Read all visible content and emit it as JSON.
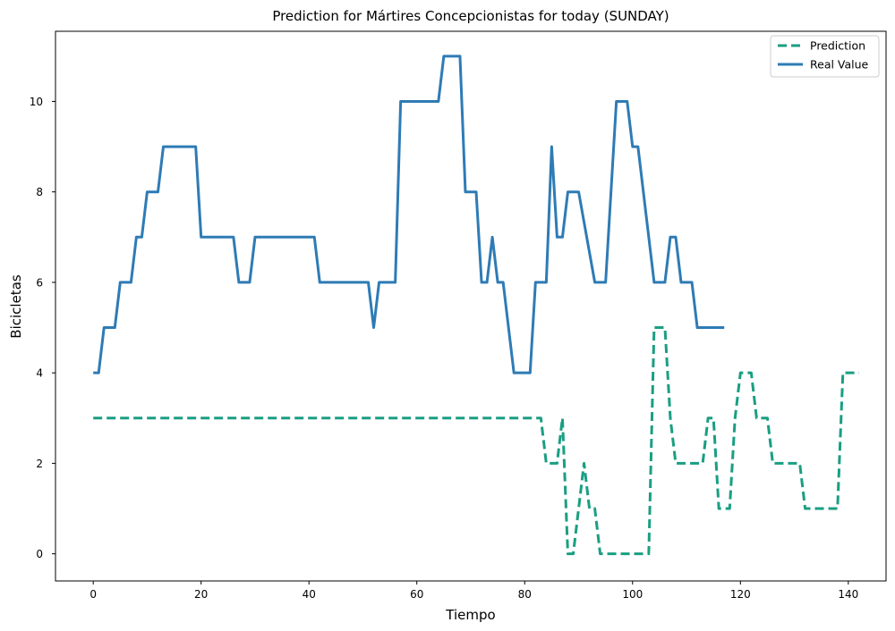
{
  "chart_data": {
    "type": "line",
    "title": "Prediction for Mártires Concepcionistas for today (SUNDAY)",
    "xlabel": "Tiempo",
    "ylabel": "Bicicletas",
    "xlim": [
      -7,
      147
    ],
    "ylim": [
      -0.6,
      11.55
    ],
    "xticks": [
      0,
      20,
      40,
      60,
      80,
      100,
      120,
      140
    ],
    "yticks": [
      0,
      2,
      4,
      6,
      8,
      10
    ],
    "grid": false,
    "legend_position": "top-right",
    "series": [
      {
        "name": "Prediction",
        "color": "#1a9e82",
        "style": "dashed",
        "points": [
          [
            0,
            3
          ],
          [
            83,
            3
          ],
          [
            84,
            2
          ],
          [
            86,
            2
          ],
          [
            87,
            3
          ],
          [
            88,
            0
          ],
          [
            89,
            0
          ],
          [
            91,
            2
          ],
          [
            92,
            1
          ],
          [
            93,
            1
          ],
          [
            94,
            0
          ],
          [
            103,
            0
          ],
          [
            104,
            5
          ],
          [
            106,
            5
          ],
          [
            107,
            3
          ],
          [
            108,
            2
          ],
          [
            113,
            2
          ],
          [
            114,
            3
          ],
          [
            115,
            3
          ],
          [
            116,
            1
          ],
          [
            118,
            1
          ],
          [
            119,
            3
          ],
          [
            120,
            4
          ],
          [
            122,
            4
          ],
          [
            123,
            3
          ],
          [
            125,
            3
          ],
          [
            126,
            2
          ],
          [
            128,
            2
          ],
          [
            129,
            2
          ],
          [
            131,
            2
          ],
          [
            132,
            1
          ],
          [
            138,
            1
          ],
          [
            139,
            4
          ],
          [
            142,
            4
          ]
        ]
      },
      {
        "name": "Real Value",
        "color": "#2e7bb5",
        "style": "solid",
        "points": [
          [
            0,
            4
          ],
          [
            1,
            4
          ],
          [
            2,
            5
          ],
          [
            4,
            5
          ],
          [
            5,
            6
          ],
          [
            7,
            6
          ],
          [
            8,
            7
          ],
          [
            9,
            7
          ],
          [
            10,
            8
          ],
          [
            12,
            8
          ],
          [
            13,
            9
          ],
          [
            19,
            9
          ],
          [
            20,
            7
          ],
          [
            26,
            7
          ],
          [
            27,
            6
          ],
          [
            29,
            6
          ],
          [
            30,
            7
          ],
          [
            41,
            7
          ],
          [
            42,
            6
          ],
          [
            51,
            6
          ],
          [
            52,
            5
          ],
          [
            53,
            6
          ],
          [
            56,
            6
          ],
          [
            57,
            10
          ],
          [
            64,
            10
          ],
          [
            65,
            11
          ],
          [
            68,
            11
          ],
          [
            69,
            8
          ],
          [
            71,
            8
          ],
          [
            72,
            6
          ],
          [
            73,
            6
          ],
          [
            74,
            7
          ],
          [
            75,
            6
          ],
          [
            76,
            6
          ],
          [
            78,
            4
          ],
          [
            81,
            4
          ],
          [
            82,
            6
          ],
          [
            84,
            6
          ],
          [
            85,
            9
          ],
          [
            86,
            7
          ],
          [
            87,
            7
          ],
          [
            88,
            8
          ],
          [
            90,
            8
          ],
          [
            93,
            6
          ],
          [
            95,
            6
          ],
          [
            97,
            10
          ],
          [
            99,
            10
          ],
          [
            100,
            9
          ],
          [
            101,
            9
          ],
          [
            104,
            6
          ],
          [
            106,
            6
          ],
          [
            107,
            7
          ],
          [
            108,
            7
          ],
          [
            109,
            6
          ],
          [
            111,
            6
          ],
          [
            112,
            5
          ],
          [
            117,
            5
          ]
        ]
      }
    ]
  }
}
